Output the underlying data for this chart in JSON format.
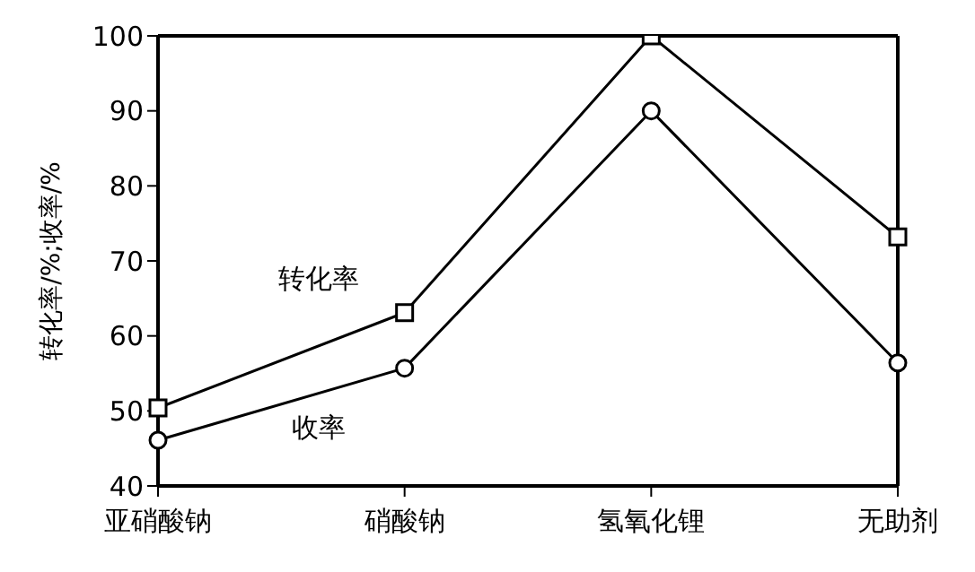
{
  "chart_data": {
    "type": "line",
    "ylabel": "转化率/%;收率/%",
    "categories": [
      "亚硝酸钠",
      "硝酸钠",
      "氢氧化锂",
      "无助剂"
    ],
    "series": [
      {
        "name": "转化率",
        "color": "#000000",
        "marker": "square",
        "values": [
          50.4,
          63.1,
          100,
          73.2
        ]
      },
      {
        "name": "收率",
        "color": "#000000",
        "marker": "circle",
        "values": [
          46.1,
          55.7,
          90,
          56.4
        ]
      }
    ],
    "ylim": [
      40,
      100
    ],
    "yticks": [
      40,
      50,
      60,
      70,
      80,
      90,
      100
    ],
    "grid": false,
    "legend": false
  }
}
